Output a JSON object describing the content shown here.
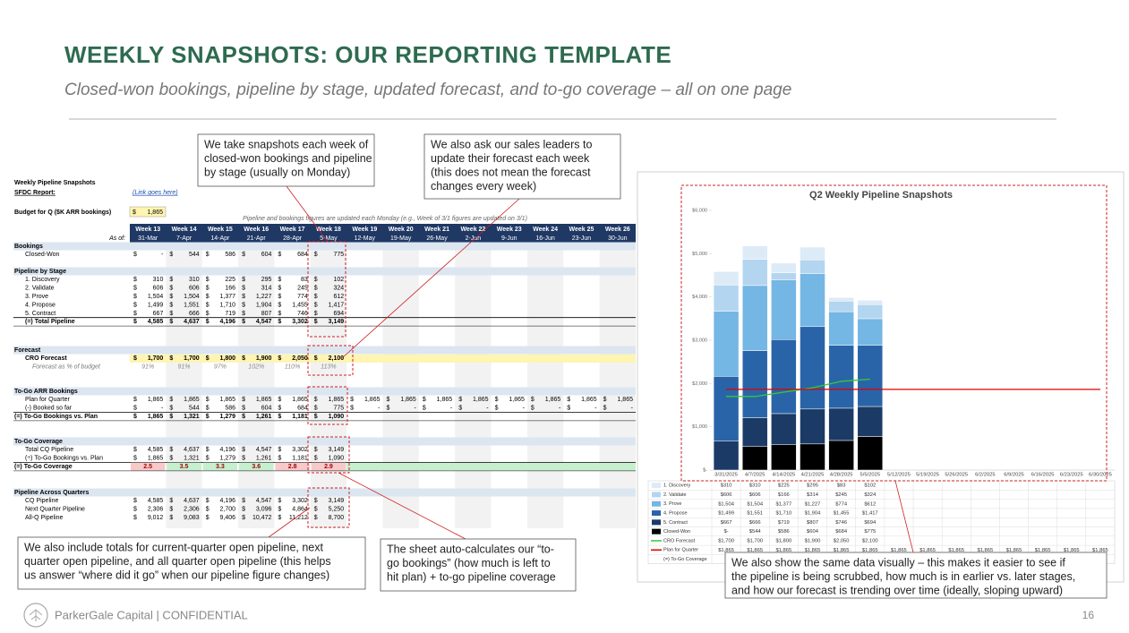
{
  "header": {
    "title": "WEEKLY SNAPSHOTS: OUR REPORTING TEMPLATE",
    "subtitle": "Closed-won bookings, pipeline by stage, updated forecast, and to-go coverage – all on one page"
  },
  "callouts": [
    {
      "lines": [
        "We take snapshots each week of",
        "closed-won bookings and pipeline",
        "by stage (usually on Monday)"
      ]
    },
    {
      "lines": [
        "We also ask our sales leaders to",
        "update their forecast each week",
        "(this does not mean the forecast",
        "changes every week)"
      ]
    },
    {
      "lines": [
        "We also include totals for current-quarter open pipeline, next",
        "quarter open pipeline, and all quarter open pipeline (this helps",
        "us answer “where did it go” when our pipeline figure changes)"
      ]
    },
    {
      "lines": [
        "The sheet auto-calculates our “to-",
        "go bookings” (how much is left to",
        "hit plan) + to-go pipeline coverage"
      ]
    },
    {
      "lines": [
        "We also show the same data visually – this makes it easier to see if",
        "the pipeline is being scrubbed, how much is in earlier vs. later stages,",
        "and how our forecast is trending over time (ideally, sloping upward)"
      ]
    }
  ],
  "spreadsheet": {
    "title": "Weekly Pipeline Snapshots",
    "report_label": "SFDC Report:",
    "report_link": "(Link goes here)",
    "budget_label": "Budget for Q ($K ARR bookings)",
    "budget": "1,865",
    "currency": "$",
    "note": "Pipeline and bookings figures are updated each Monday (e.g., Week of 3/1 figures are updated on 3/1)",
    "as_of": "As of:",
    "weeks": [
      "Week 13",
      "Week 14",
      "Week 15",
      "Week 16",
      "Week 17",
      "Week 18",
      "Week 19",
      "Week 20",
      "Week 21",
      "Week 22",
      "Week 23",
      "Week 24",
      "Week 25",
      "Week 26"
    ],
    "dates": [
      "31-Mar",
      "7-Apr",
      "14-Apr",
      "21-Apr",
      "28-Apr",
      "5-May",
      "12-May",
      "19-May",
      "26-May",
      "2-Jun",
      "9-Jun",
      "16-Jun",
      "23-Jun",
      "30-Jun"
    ],
    "sections": [
      {
        "title": "Bookings",
        "rows": [
          {
            "label": "Closed-Won",
            "dollar": true,
            "cells": [
              "-",
              "544",
              "586",
              "604",
              "684",
              "775"
            ]
          }
        ]
      },
      {
        "title": "Pipeline by Stage",
        "rows": [
          {
            "label": "1. Discovery",
            "dollar": true,
            "cells": [
              "310",
              "310",
              "225",
              "295",
              "83",
              "102"
            ]
          },
          {
            "label": "2. Validate",
            "dollar": true,
            "cells": [
              "606",
              "606",
              "166",
              "314",
              "245",
              "324"
            ]
          },
          {
            "label": "3. Prove",
            "dollar": true,
            "cells": [
              "1,504",
              "1,504",
              "1,377",
              "1,227",
              "774",
              "612"
            ]
          },
          {
            "label": "4. Propose",
            "dollar": true,
            "cells": [
              "1,499",
              "1,551",
              "1,710",
              "1,904",
              "1,455",
              "1,417"
            ]
          },
          {
            "label": "5. Contract",
            "dollar": true,
            "cells": [
              "667",
              "666",
              "719",
              "807",
              "746",
              "694"
            ]
          },
          {
            "label": "(=) Total Pipeline",
            "dollar": true,
            "bold": true,
            "total": true,
            "cells": [
              "4,585",
              "4,637",
              "4,196",
              "4,547",
              "3,302",
              "3,149"
            ]
          }
        ]
      },
      {
        "title": "Forecast",
        "rows": [
          {
            "label": "CRO Forecast",
            "dollar": true,
            "bold": true,
            "highlight": "#fff4b0",
            "cells": [
              "1,700",
              "1,700",
              "1,800",
              "1,900",
              "2,050",
              "2,100"
            ]
          },
          {
            "label": "Forecast as % of budget",
            "italic": true,
            "cells": [
              "91%",
              "91%",
              "97%",
              "102%",
              "110%",
              "113%"
            ]
          }
        ]
      },
      {
        "title": "To-Go ARR Bookings",
        "rows": [
          {
            "label": "Plan for Quarter",
            "dollar": true,
            "cells": [
              "1,865",
              "1,865",
              "1,865",
              "1,865",
              "1,865",
              "1,865",
              "1,865",
              "1,865",
              "1,865",
              "1,865",
              "1,865",
              "1,865",
              "1,865",
              "1,865"
            ]
          },
          {
            "label": "(-) Booked so far",
            "dollar": true,
            "cells": [
              "-",
              "544",
              "586",
              "604",
              "684",
              "775",
              "-",
              "-",
              "-",
              "-",
              "-",
              "-",
              "-",
              "-"
            ]
          },
          {
            "label": "(=) To-Go Bookings vs. Plan",
            "dollar": true,
            "bold": true,
            "total": true,
            "outdent": true,
            "cells": [
              "1,865",
              "1,321",
              "1,279",
              "1,261",
              "1,181",
              "1,090"
            ]
          }
        ]
      },
      {
        "title": "To-Go Coverage",
        "rows": [
          {
            "label": "Total CQ Pipeline",
            "dollar": true,
            "cells": [
              "4,585",
              "4,637",
              "4,196",
              "4,547",
              "3,302",
              "3,149"
            ]
          },
          {
            "label": "(÷) To-Go Bookings vs. Plan",
            "dollar": true,
            "cells": [
              "1,865",
              "1,321",
              "1,279",
              "1,261",
              "1,181",
              "1,090"
            ]
          },
          {
            "label": "(=) To-Go Coverage",
            "bold": true,
            "total": true,
            "outdent": true,
            "row_color": "#c6efce",
            "cell_colors": [
              "#f8c9c9",
              "#c6efce",
              "#c6efce",
              "#c6efce",
              "#f8c9c9",
              "#f8c9c9"
            ],
            "cells": [
              "2.5",
              "3.5",
              "3.3",
              "3.6",
              "2.8",
              "2.9"
            ]
          }
        ]
      },
      {
        "title": "Pipeline Across Quarters",
        "rows": [
          {
            "label": "CQ Pipeline",
            "dollar": true,
            "cells": [
              "4,585",
              "4,637",
              "4,196",
              "4,547",
              "3,302",
              "3,149"
            ]
          },
          {
            "label": "Next Quarter Pipeline",
            "dollar": true,
            "cells": [
              "2,306",
              "2,306",
              "2,700",
              "3,096",
              "4,864",
              "5,250"
            ]
          },
          {
            "label": "All-Q Pipeline",
            "dollar": true,
            "cells": [
              "9,012",
              "9,083",
              "9,406",
              "10,472",
              "11,212",
              "8,700"
            ]
          }
        ]
      }
    ]
  },
  "chart_data": {
    "type": "bar",
    "title": "Q2 Weekly Pipeline Snapshots",
    "categories": [
      "3/31/2025",
      "4/7/2025",
      "4/14/2025",
      "4/21/2025",
      "4/28/2025",
      "5/5/2025",
      "5/12/2025",
      "5/19/2025",
      "5/26/2025",
      "6/2/2025",
      "6/9/2025",
      "6/16/2025",
      "6/23/2025",
      "6/30/2025"
    ],
    "ylim": [
      0,
      6000
    ],
    "yticks": [
      {
        "value": 0,
        "label": "$-"
      },
      {
        "value": 1000,
        "label": "$1,000"
      },
      {
        "value": 2000,
        "label": "$2,000"
      },
      {
        "value": 3000,
        "label": "$3,000"
      },
      {
        "value": 4000,
        "label": "$4,000"
      },
      {
        "value": 5000,
        "label": "$5,000"
      },
      {
        "value": 6000,
        "label": "$6,000"
      }
    ],
    "series": [
      {
        "name": "1. Discovery",
        "color": "#ddebf7",
        "values": [
          310,
          310,
          225,
          295,
          83,
          102,
          null,
          null,
          null,
          null,
          null,
          null,
          null,
          null
        ],
        "value_labels": [
          "$310",
          "$310",
          "$225",
          "$295",
          "$83",
          "$102",
          null,
          null,
          null,
          null,
          null,
          null,
          null,
          null
        ]
      },
      {
        "name": "2. Validate",
        "color": "#b4d5ef",
        "values": [
          606,
          606,
          166,
          314,
          245,
          324,
          null,
          null,
          null,
          null,
          null,
          null,
          null,
          null
        ],
        "value_labels": [
          "$606",
          "$606",
          "$166",
          "$314",
          "$245",
          "$324",
          null,
          null,
          null,
          null,
          null,
          null,
          null,
          null
        ]
      },
      {
        "name": "3. Prove",
        "color": "#74b6e4",
        "values": [
          1504,
          1504,
          1377,
          1227,
          774,
          612,
          null,
          null,
          null,
          null,
          null,
          null,
          null,
          null
        ],
        "value_labels": [
          "$1,504",
          "$1,504",
          "$1,377",
          "$1,227",
          "$774",
          "$612",
          null,
          null,
          null,
          null,
          null,
          null,
          null,
          null
        ]
      },
      {
        "name": "4. Propose",
        "color": "#2a64a8",
        "values": [
          1499,
          1551,
          1710,
          1904,
          1455,
          1417,
          null,
          null,
          null,
          null,
          null,
          null,
          null,
          null
        ],
        "value_labels": [
          "$1,499",
          "$1,551",
          "$1,710",
          "$1,904",
          "$1,455",
          "$1,417",
          null,
          null,
          null,
          null,
          null,
          null,
          null,
          null
        ]
      },
      {
        "name": "5. Contract",
        "color": "#1b3a66",
        "values": [
          667,
          666,
          719,
          807,
          746,
          694,
          null,
          null,
          null,
          null,
          null,
          null,
          null,
          null
        ],
        "value_labels": [
          "$667",
          "$666",
          "$719",
          "$807",
          "$746",
          "$694",
          null,
          null,
          null,
          null,
          null,
          null,
          null,
          null
        ]
      },
      {
        "name": "Closed-Won",
        "color": "#000000",
        "values": [
          0,
          544,
          586,
          604,
          684,
          775,
          null,
          null,
          null,
          null,
          null,
          null,
          null,
          null
        ],
        "value_labels": [
          "$-",
          "$544",
          "$586",
          "$604",
          "$684",
          "$775",
          null,
          null,
          null,
          null,
          null,
          null,
          null,
          null
        ]
      },
      {
        "name": "CRO Forecast",
        "color": "#33cc33",
        "type": "line",
        "values": [
          1700,
          1700,
          1800,
          1900,
          2050,
          2100,
          null,
          null,
          null,
          null,
          null,
          null,
          null,
          null
        ],
        "value_labels": [
          "$1,700",
          "$1,700",
          "$1,800",
          "$1,900",
          "$2,050",
          "$2,100",
          null,
          null,
          null,
          null,
          null,
          null,
          null,
          null
        ]
      },
      {
        "name": "Plan for Quarter",
        "color": "#e00000",
        "type": "line",
        "values": [
          1865,
          1865,
          1865,
          1865,
          1865,
          1865,
          1865,
          1865,
          1865,
          1865,
          1865,
          1865,
          1865,
          1865
        ],
        "value_labels": [
          "$1,865",
          "$1,865",
          "$1,865",
          "$1,865",
          "$1,865",
          "$1,865",
          "$1,865",
          "$1,865",
          "$1,865",
          "$1,865",
          "$1,865",
          "$1,865",
          "$1,865",
          "$1,865"
        ]
      }
    ],
    "extra_rows": [
      "(=) To-Go Coverage"
    ]
  },
  "footer": {
    "company": "ParkerGale Capital | CONFIDENTIAL",
    "page": "16"
  }
}
